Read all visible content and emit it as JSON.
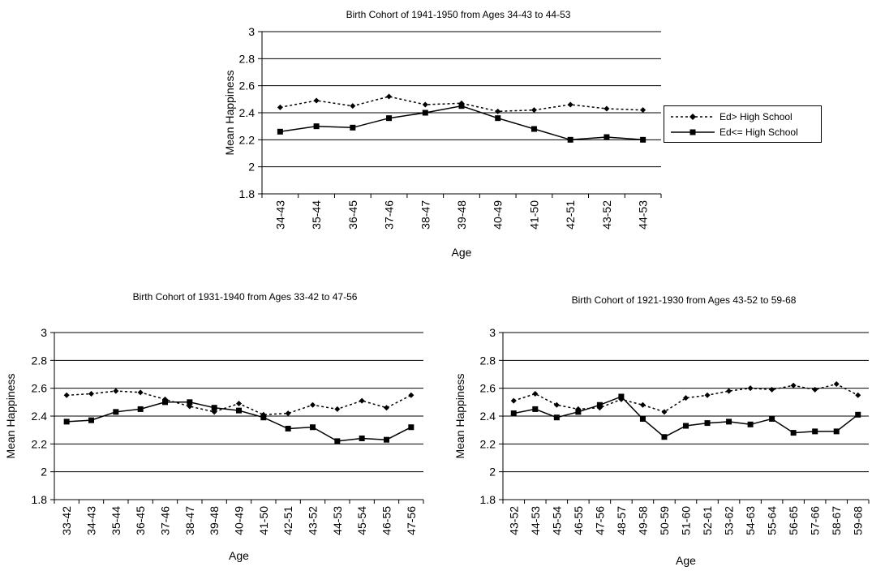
{
  "legend": {
    "items": [
      {
        "label": "Ed> High School",
        "style": "dotted",
        "marker": "diamond"
      },
      {
        "label": "Ed<= High School",
        "style": "solid",
        "marker": "square"
      }
    ]
  },
  "chart_data": [
    {
      "type": "line",
      "title": "Birth Cohort of 1941-1950 from Ages 34-43 to 44-53",
      "xlabel": "Age",
      "ylabel": "Mean Happiness",
      "ylim": [
        1.8,
        3
      ],
      "yticks": [
        "1.8",
        "2",
        "2.2",
        "2.4",
        "2.6",
        "2.8",
        "3"
      ],
      "grid": true,
      "legend": "right",
      "categories": [
        "34-43",
        "35-44",
        "36-45",
        "37-46",
        "38-47",
        "39-48",
        "40-49",
        "41-50",
        "42-51",
        "43-52",
        "44-53"
      ],
      "series": [
        {
          "name": "Ed> High School",
          "values": [
            2.44,
            2.49,
            2.45,
            2.52,
            2.46,
            2.47,
            2.41,
            2.42,
            2.46,
            2.43,
            2.42
          ]
        },
        {
          "name": "Ed<= High School",
          "values": [
            2.26,
            2.3,
            2.29,
            2.36,
            2.4,
            2.45,
            2.36,
            2.28,
            2.2,
            2.22,
            2.2
          ]
        }
      ]
    },
    {
      "type": "line",
      "title": "Birth Cohort of 1931-1940 from Ages 33-42 to 47-56",
      "xlabel": "Age",
      "ylabel": "Mean Happiness",
      "ylim": [
        1.8,
        3
      ],
      "yticks": [
        "1.8",
        "2",
        "2.2",
        "2.4",
        "2.6",
        "2.8",
        "3"
      ],
      "grid": true,
      "categories": [
        "33-42",
        "34-43",
        "35-44",
        "36-45",
        "37-46",
        "38-47",
        "39-48",
        "40-49",
        "41-50",
        "42-51",
        "43-52",
        "44-53",
        "45-54",
        "46-55",
        "47-56"
      ],
      "series": [
        {
          "name": "Ed> High School",
          "values": [
            2.55,
            2.56,
            2.58,
            2.57,
            2.52,
            2.47,
            2.43,
            2.49,
            2.41,
            2.42,
            2.48,
            2.45,
            2.51,
            2.46,
            2.55
          ]
        },
        {
          "name": "Ed<= High School",
          "values": [
            2.36,
            2.37,
            2.43,
            2.45,
            2.5,
            2.5,
            2.46,
            2.44,
            2.39,
            2.31,
            2.32,
            2.22,
            2.24,
            2.23,
            2.32
          ]
        }
      ]
    },
    {
      "type": "line",
      "title": "Birth Cohort of 1921-1930 from Ages 43-52 to 59-68",
      "xlabel": "Age",
      "ylabel": "Mean Happiness",
      "ylim": [
        1.8,
        3
      ],
      "yticks": [
        "1.8",
        "2",
        "2.2",
        "2.4",
        "2.6",
        "2.8",
        "3"
      ],
      "grid": true,
      "categories": [
        "43-52",
        "44-53",
        "45-54",
        "46-55",
        "47-56",
        "48-57",
        "49-58",
        "50-59",
        "51-60",
        "52-61",
        "53-62",
        "54-63",
        "55-64",
        "56-65",
        "57-66",
        "58-67",
        "59-68"
      ],
      "series": [
        {
          "name": "Ed> High School",
          "values": [
            2.51,
            2.56,
            2.48,
            2.45,
            2.46,
            2.52,
            2.48,
            2.43,
            2.53,
            2.55,
            2.58,
            2.6,
            2.59,
            2.62,
            2.59,
            2.63,
            2.55
          ]
        },
        {
          "name": "Ed<= High School",
          "values": [
            2.42,
            2.45,
            2.39,
            2.43,
            2.48,
            2.54,
            2.38,
            2.25,
            2.33,
            2.35,
            2.36,
            2.34,
            2.38,
            2.28,
            2.29,
            2.29,
            2.41
          ]
        }
      ]
    }
  ]
}
